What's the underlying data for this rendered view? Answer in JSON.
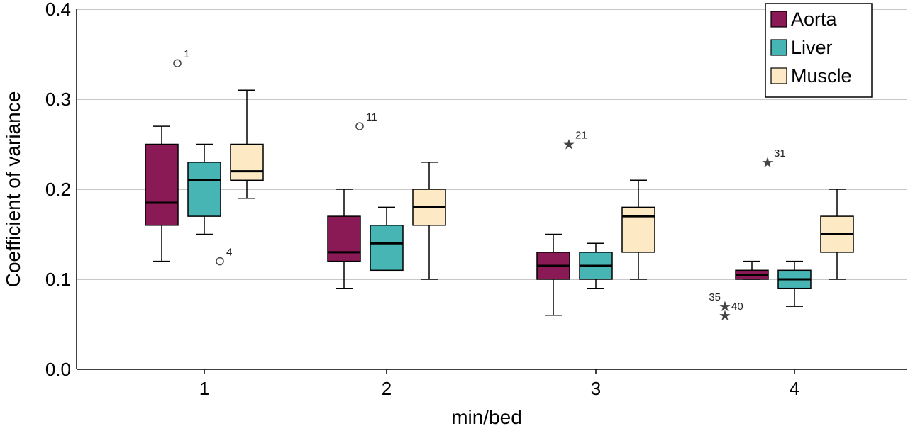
{
  "chart_data": {
    "type": "boxplot",
    "xlabel": "min/bed",
    "ylabel": "Coefficient of variance",
    "ylim": [
      0.0,
      0.4
    ],
    "yticks": [
      "0.0",
      "0.1",
      "0.2",
      "0.3",
      "0.4"
    ],
    "categories": [
      "1",
      "2",
      "3",
      "4"
    ],
    "grid": "horizontal",
    "legend_position": "top-right",
    "series": [
      {
        "name": "Aorta",
        "color": "#8a1a55",
        "boxes": [
          {
            "whisker_low": 0.12,
            "q1": 0.16,
            "median": 0.185,
            "q3": 0.25,
            "whisker_high": 0.27,
            "outliers": []
          },
          {
            "whisker_low": 0.09,
            "q1": 0.12,
            "median": 0.13,
            "q3": 0.17,
            "whisker_high": 0.2,
            "outliers": []
          },
          {
            "whisker_low": 0.06,
            "q1": 0.1,
            "median": 0.115,
            "q3": 0.13,
            "whisker_high": 0.15,
            "outliers": []
          },
          {
            "whisker_low": 0.1,
            "q1": 0.1,
            "median": 0.105,
            "q3": 0.11,
            "whisker_high": 0.12,
            "outliers": [
              {
                "value": 0.07,
                "label": "35",
                "marker": "star",
                "label_side": "left"
              },
              {
                "value": 0.06,
                "label": "40",
                "marker": "star",
                "label_side": "right"
              }
            ]
          }
        ]
      },
      {
        "name": "Liver",
        "color": "#48b5b5",
        "boxes": [
          {
            "whisker_low": 0.15,
            "q1": 0.17,
            "median": 0.21,
            "q3": 0.23,
            "whisker_high": 0.25,
            "outliers": [
              {
                "value": 0.34,
                "label": "1",
                "marker": "circle",
                "label_side": "right"
              }
            ]
          },
          {
            "whisker_low": 0.11,
            "q1": 0.11,
            "median": 0.14,
            "q3": 0.16,
            "whisker_high": 0.18,
            "outliers": [
              {
                "value": 0.27,
                "label": "11",
                "marker": "circle",
                "label_side": "right"
              }
            ]
          },
          {
            "whisker_low": 0.09,
            "q1": 0.1,
            "median": 0.115,
            "q3": 0.13,
            "whisker_high": 0.14,
            "outliers": [
              {
                "value": 0.25,
                "label": "21",
                "marker": "star",
                "label_side": "right"
              }
            ]
          },
          {
            "whisker_low": 0.07,
            "q1": 0.09,
            "median": 0.1,
            "q3": 0.11,
            "whisker_high": 0.12,
            "outliers": [
              {
                "value": 0.23,
                "label": "31",
                "marker": "star",
                "label_side": "right"
              }
            ]
          }
        ]
      },
      {
        "name": "Muscle",
        "color": "#fde9c4",
        "boxes": [
          {
            "whisker_low": 0.19,
            "q1": 0.21,
            "median": 0.22,
            "q3": 0.25,
            "whisker_high": 0.31,
            "outliers": [
              {
                "value": 0.12,
                "label": "4",
                "marker": "circle",
                "label_side": "right"
              }
            ]
          },
          {
            "whisker_low": 0.1,
            "q1": 0.16,
            "median": 0.18,
            "q3": 0.2,
            "whisker_high": 0.23,
            "outliers": []
          },
          {
            "whisker_low": 0.1,
            "q1": 0.13,
            "median": 0.17,
            "q3": 0.18,
            "whisker_high": 0.21,
            "outliers": []
          },
          {
            "whisker_low": 0.1,
            "q1": 0.13,
            "median": 0.15,
            "q3": 0.17,
            "whisker_high": 0.2,
            "outliers": []
          }
        ]
      }
    ]
  }
}
